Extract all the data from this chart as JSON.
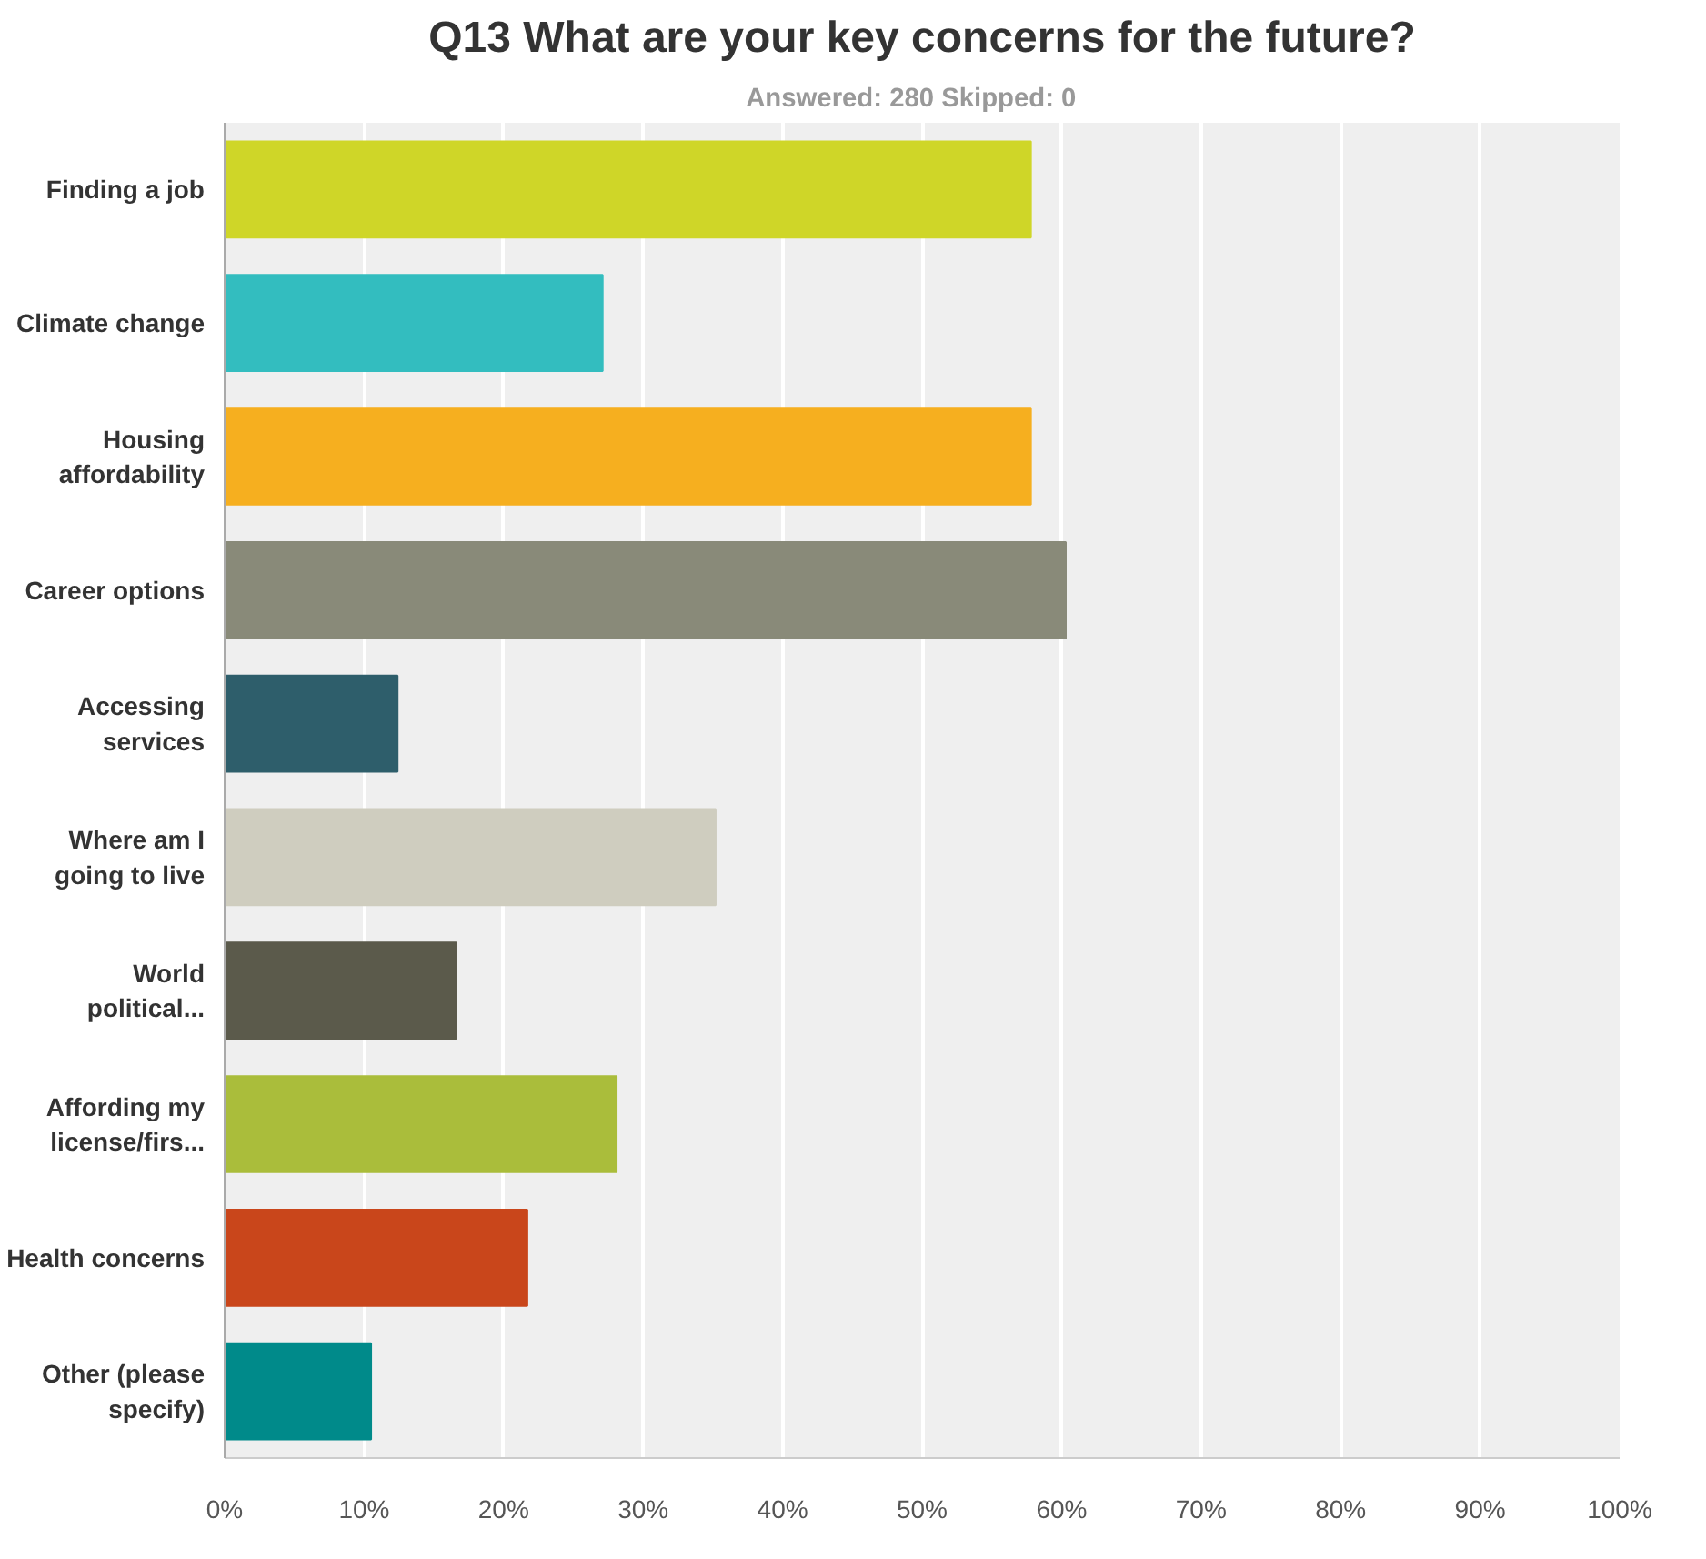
{
  "chart_data": {
    "type": "bar",
    "orientation": "horizontal",
    "title": "Q13 What are your key concerns for the future?",
    "subtitle": "Answered: 280    Skipped: 0",
    "categories": [
      "Finding a job",
      "Climate change",
      "Housing affordability",
      "Career options",
      "Accessing services",
      "Where am I going to live",
      "World political...",
      "Affording my license/firs...",
      "Health concerns",
      "Other (please specify)"
    ],
    "values": [
      57.8,
      27.1,
      57.8,
      60.3,
      12.4,
      35.2,
      16.6,
      28.1,
      21.7,
      10.5
    ],
    "colors": [
      "#cfd628",
      "#33bdbf",
      "#f6af1f",
      "#898a79",
      "#2e5e6b",
      "#cfcdbf",
      "#5b5a4b",
      "#aabd3b",
      "#c9461b",
      "#008a8a"
    ],
    "xlim": [
      0,
      100
    ],
    "xticks": [
      {
        "value": 0,
        "label": "0%"
      },
      {
        "value": 10,
        "label": "10%"
      },
      {
        "value": 20,
        "label": "20%"
      },
      {
        "value": 30,
        "label": "30%"
      },
      {
        "value": 40,
        "label": "40%"
      },
      {
        "value": 50,
        "label": "50%"
      },
      {
        "value": 60,
        "label": "60%"
      },
      {
        "value": 70,
        "label": "70%"
      },
      {
        "value": 80,
        "label": "80%"
      },
      {
        "value": 90,
        "label": "90%"
      },
      {
        "value": 100,
        "label": "100%"
      }
    ],
    "grid": "x"
  }
}
